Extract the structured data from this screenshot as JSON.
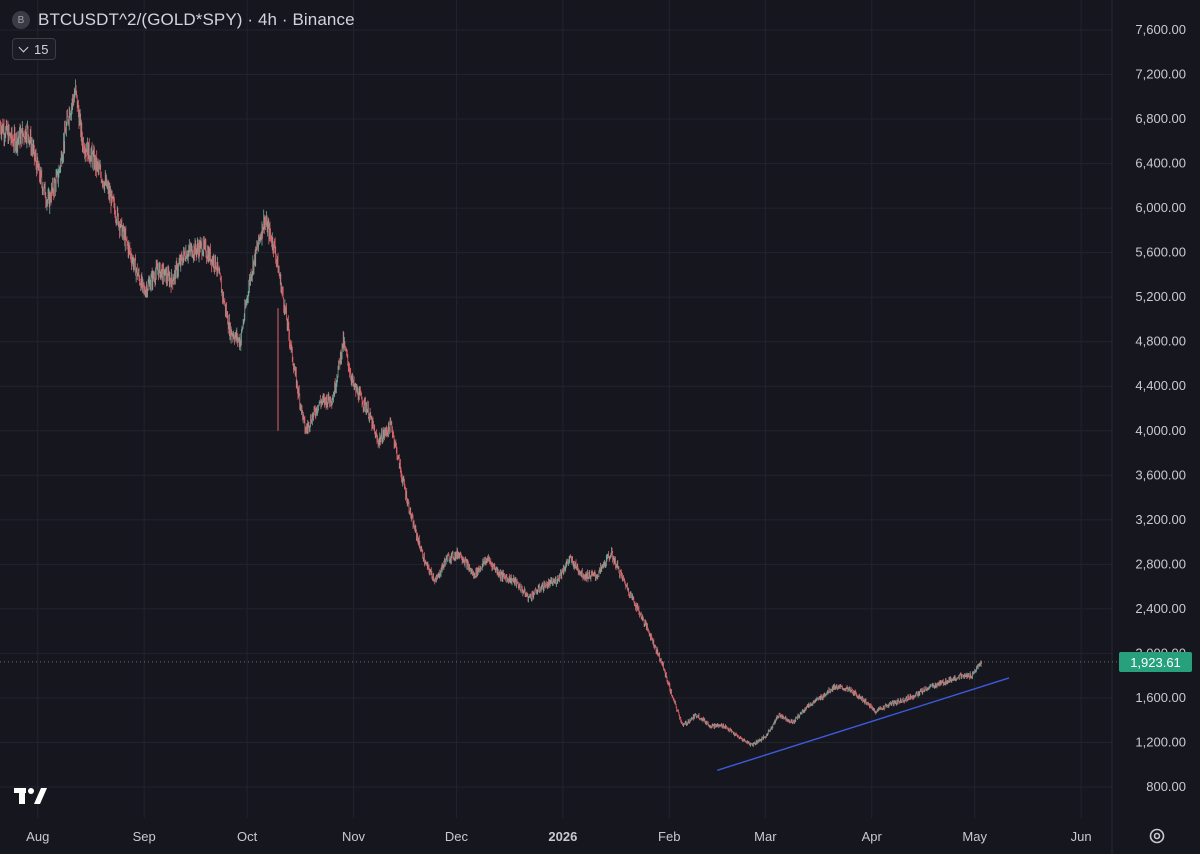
{
  "header": {
    "symbol_badge": "B",
    "title": "BTCUSDT^2/(GOLD*SPY) · 4h · Binance",
    "studies_count": "15"
  },
  "colors": {
    "background": "#16161f",
    "grid": "#22232e",
    "up_candle": "#7aa79a",
    "down_candle": "#e0646b",
    "trendline": "#3b5bdb",
    "last_price": "#26a17c",
    "axis_text": "#c8cad2"
  },
  "icons": {
    "logo": "tradingview-logo-icon",
    "settings": "gear-icon"
  },
  "chart_data": {
    "type": "candlestick",
    "title": "BTCUSDT^2/(GOLD*SPY) · 4h · Binance",
    "timeframe": "4h",
    "exchange": "Binance",
    "ylim": [
      600,
      7800
    ],
    "y_ticks": [
      "7,600.00",
      "7,200.00",
      "6,800.00",
      "6,400.00",
      "6,000.00",
      "5,600.00",
      "5,200.00",
      "4,800.00",
      "4,400.00",
      "4,000.00",
      "3,600.00",
      "3,200.00",
      "2,800.00",
      "2,400.00",
      "2,000.00",
      "1,600.00",
      "1,200.00",
      "800.00"
    ],
    "y_tick_values": [
      7600,
      7200,
      6800,
      6400,
      6000,
      5600,
      5200,
      4800,
      4400,
      4000,
      3600,
      3200,
      2800,
      2400,
      2000,
      1600,
      1200,
      800
    ],
    "x_ticks": [
      "Aug",
      "Sep",
      "Oct",
      "Nov",
      "Dec",
      "2026",
      "Feb",
      "Mar",
      "Apr",
      "May",
      "Jun"
    ],
    "x_tick_dates": [
      "2025-08-01",
      "2025-09-01",
      "2025-10-01",
      "2025-11-01",
      "2025-12-01",
      "2026-01-01",
      "2026-02-01",
      "2026-03-01",
      "2026-04-01",
      "2026-05-01",
      "2026-06-01"
    ],
    "bold_x_tick": "2026",
    "x_range": [
      "2025-07-21",
      "2026-06-10"
    ],
    "last_price": 1923.61,
    "last_price_label": "1,923.61",
    "price_path": [
      [
        "2025-07-21",
        6750
      ],
      [
        "2025-07-25",
        6600
      ],
      [
        "2025-07-29",
        6700
      ],
      [
        "2025-08-01",
        6350
      ],
      [
        "2025-08-04",
        6050
      ],
      [
        "2025-08-07",
        6300
      ],
      [
        "2025-08-10",
        6850
      ],
      [
        "2025-08-12",
        7050
      ],
      [
        "2025-08-14",
        6600
      ],
      [
        "2025-08-17",
        6450
      ],
      [
        "2025-08-21",
        6200
      ],
      [
        "2025-08-25",
        5850
      ],
      [
        "2025-08-29",
        5500
      ],
      [
        "2025-09-01",
        5250
      ],
      [
        "2025-09-05",
        5450
      ],
      [
        "2025-09-09",
        5350
      ],
      [
        "2025-09-13",
        5600
      ],
      [
        "2025-09-18",
        5650
      ],
      [
        "2025-09-22",
        5500
      ],
      [
        "2025-09-26",
        4900
      ],
      [
        "2025-09-29",
        4800
      ],
      [
        "2025-10-02",
        5400
      ],
      [
        "2025-10-06",
        5900
      ],
      [
        "2025-10-09",
        5650
      ],
      [
        "2025-10-12",
        5100
      ],
      [
        "2025-10-15",
        4500
      ],
      [
        "2025-10-18",
        4000
      ],
      [
        "2025-10-22",
        4250
      ],
      [
        "2025-10-26",
        4300
      ],
      [
        "2025-10-29",
        4800
      ],
      [
        "2025-11-01",
        4400
      ],
      [
        "2025-11-05",
        4200
      ],
      [
        "2025-11-08",
        3900
      ],
      [
        "2025-11-12",
        4050
      ],
      [
        "2025-11-15",
        3600
      ],
      [
        "2025-11-18",
        3200
      ],
      [
        "2025-11-22",
        2800
      ],
      [
        "2025-11-25",
        2650
      ],
      [
        "2025-11-28",
        2850
      ],
      [
        "2025-12-02",
        2900
      ],
      [
        "2025-12-06",
        2700
      ],
      [
        "2025-12-10",
        2850
      ],
      [
        "2025-12-14",
        2700
      ],
      [
        "2025-12-18",
        2650
      ],
      [
        "2025-12-22",
        2500
      ],
      [
        "2025-12-26",
        2600
      ],
      [
        "2025-12-30",
        2650
      ],
      [
        "2026-01-03",
        2850
      ],
      [
        "2026-01-07",
        2700
      ],
      [
        "2026-01-11",
        2700
      ],
      [
        "2026-01-15",
        2900
      ],
      [
        "2026-01-18",
        2700
      ],
      [
        "2026-01-22",
        2450
      ],
      [
        "2026-01-26",
        2200
      ],
      [
        "2026-01-30",
        1900
      ],
      [
        "2026-02-02",
        1600
      ],
      [
        "2026-02-05",
        1350
      ],
      [
        "2026-02-09",
        1450
      ],
      [
        "2026-02-13",
        1350
      ],
      [
        "2026-02-17",
        1350
      ],
      [
        "2026-02-21",
        1250
      ],
      [
        "2026-02-25",
        1180
      ],
      [
        "2026-03-01",
        1250
      ],
      [
        "2026-03-05",
        1450
      ],
      [
        "2026-03-09",
        1380
      ],
      [
        "2026-03-13",
        1520
      ],
      [
        "2026-03-17",
        1600
      ],
      [
        "2026-03-21",
        1700
      ],
      [
        "2026-03-25",
        1680
      ],
      [
        "2026-03-29",
        1600
      ],
      [
        "2026-04-02",
        1480
      ],
      [
        "2026-04-06",
        1540
      ],
      [
        "2026-04-10",
        1580
      ],
      [
        "2026-04-14",
        1630
      ],
      [
        "2026-04-18",
        1700
      ],
      [
        "2026-04-22",
        1740
      ],
      [
        "2026-04-26",
        1790
      ],
      [
        "2026-04-30",
        1800
      ],
      [
        "2026-05-03",
        1923.61
      ]
    ],
    "trendline": [
      [
        "2026-02-15",
        950
      ],
      [
        "2026-05-11",
        1780
      ]
    ],
    "grid": true
  }
}
